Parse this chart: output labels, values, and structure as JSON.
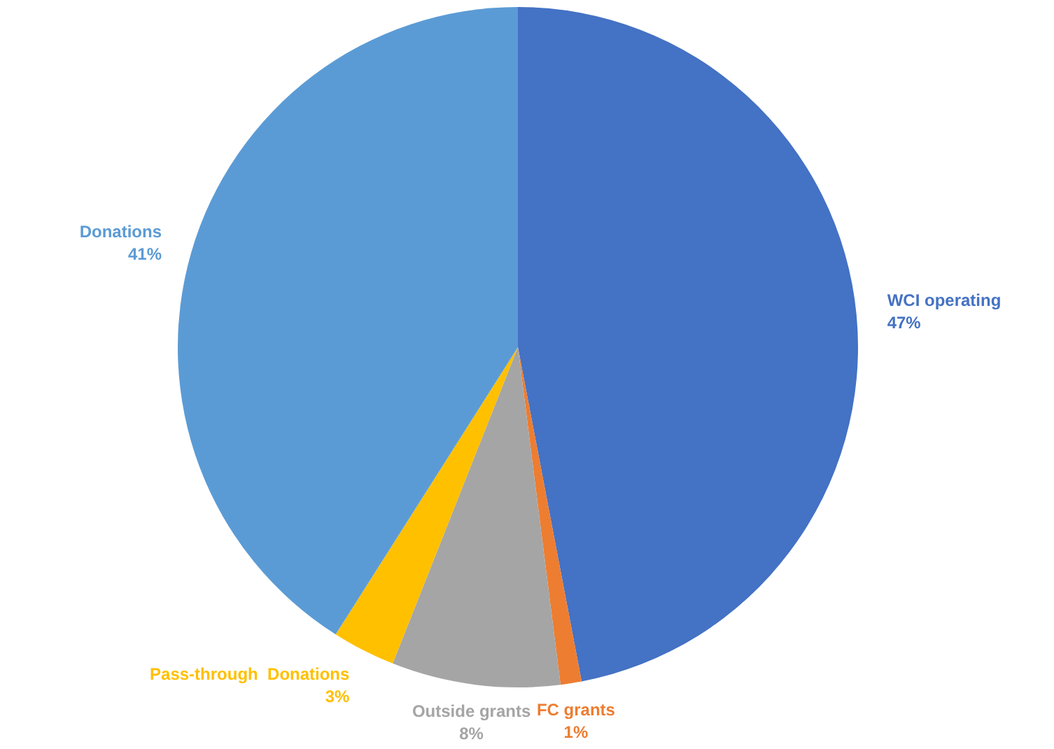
{
  "chart_data": {
    "type": "pie",
    "categories": [
      "WCI operating",
      "FC grants",
      "Outside grants",
      "Pass-through  Donations",
      "Donations"
    ],
    "values": [
      47,
      1,
      8,
      3,
      41
    ],
    "colors": [
      "#4472c4",
      "#ed7d31",
      "#a5a5a5",
      "#ffc000",
      "#5b9bd5"
    ],
    "value_labels": [
      "47%",
      "1%",
      "8%",
      "3%",
      "41%"
    ],
    "legend": false
  }
}
